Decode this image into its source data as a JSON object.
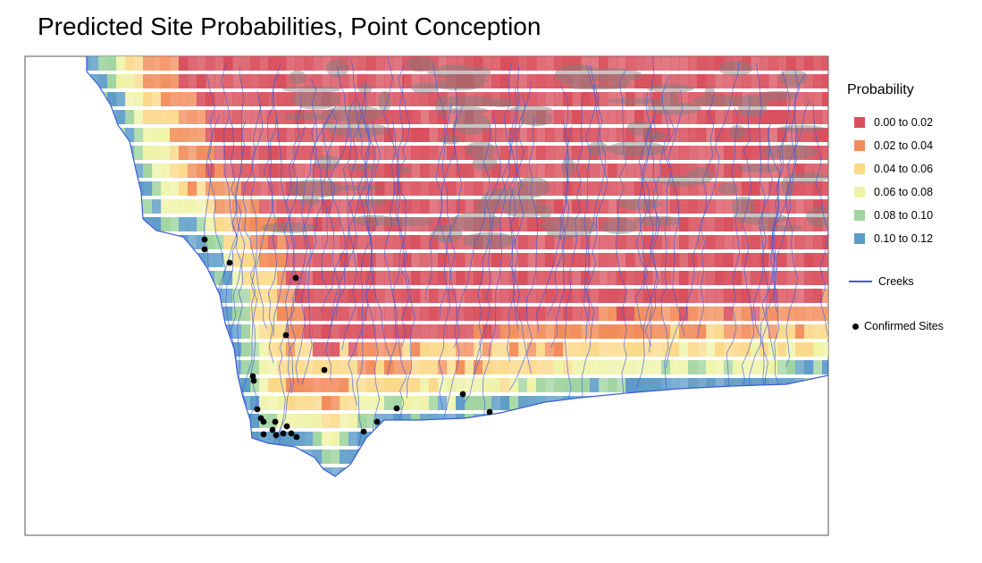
{
  "map": {
    "title": "Predicted Site Probabilities, Point Conception",
    "legend": {
      "title": "Probability",
      "classes": [
        {
          "label": "0.00 to 0.02",
          "color": "#d94f5c"
        },
        {
          "label": "0.02 to 0.04",
          "color": "#f28b59"
        },
        {
          "label": "0.04 to 0.06",
          "color": "#fbd98a"
        },
        {
          "label": "0.06 to 0.08",
          "color": "#eef3a6"
        },
        {
          "label": "0.08 to 0.10",
          "color": "#9fd4a0"
        },
        {
          "label": "0.10 to 0.12",
          "color": "#5b9bc7"
        }
      ],
      "creeks": {
        "label": "Creeks",
        "color": "#3b5bdb"
      },
      "sites": {
        "label": "Confirmed Sites",
        "color": "#000000"
      }
    },
    "colors": {
      "frame": "#555555",
      "background": "#ffffff",
      "terrain": "#7f7f7f"
    }
  }
}
